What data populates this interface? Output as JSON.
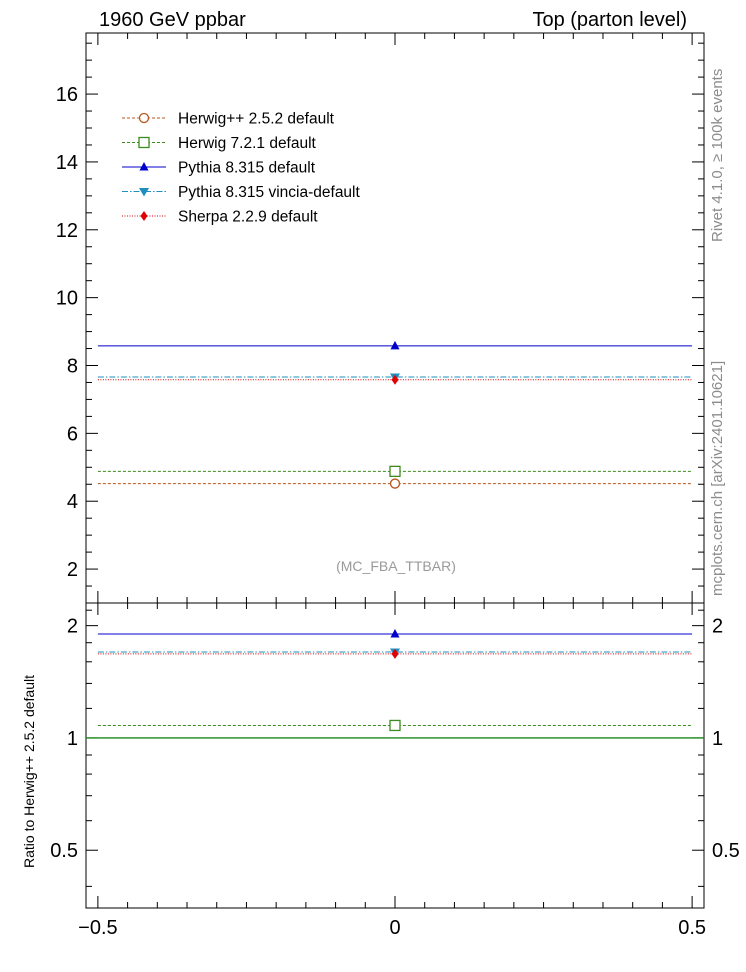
{
  "chart_data": {
    "type": "scatter",
    "header": {
      "left": "1960 GeV ppbar",
      "right": "Top (parton level)"
    },
    "side_text": {
      "rivet": "Rivet 4.1.0, ≥ 100k events",
      "mcplots": "mcplots.cern.ch [arXiv:2401.10621]"
    },
    "watermark": "(MC_FBA_TTBAR)",
    "x": [
      0
    ],
    "xlim": [
      -0.52,
      0.52
    ],
    "bin_edges": [
      -0.5,
      0.5
    ],
    "x_ticks": [
      -0.5,
      0,
      0.5
    ],
    "x_tick_labels": [
      "−0.5",
      "0",
      "0.5"
    ],
    "main": {
      "ylim": [
        1.0,
        17.8
      ],
      "y_ticks": [
        2,
        4,
        6,
        8,
        10,
        12,
        14,
        16
      ],
      "y_tick_labels": [
        "2",
        "4",
        "6",
        "8",
        "10",
        "12",
        "14",
        "16"
      ]
    },
    "ratio": {
      "ylabel": "Ratio to Herwig++ 2.5.2 default",
      "ylim": [
        0.35,
        2.3
      ],
      "scale": "log",
      "y_ticks": [
        0.5,
        1,
        2
      ],
      "y_tick_labels": [
        "0.5",
        "1",
        "2"
      ],
      "reference": 1.0
    },
    "series": [
      {
        "name": "Herwig++ 2.5.2 default",
        "color": "#b8561c",
        "marker": "open-circle",
        "dash": "3,2",
        "values": [
          4.52
        ],
        "ratio": [
          1.0
        ]
      },
      {
        "name": "Herwig 7.2.1 default",
        "color": "#3d8a1e",
        "marker": "open-square",
        "dash": "3,2",
        "values": [
          4.88
        ],
        "ratio": [
          1.08
        ]
      },
      {
        "name": "Pythia 8.315 default",
        "color": "#0000cc",
        "marker": "triangle-up",
        "dash": "",
        "values": [
          8.58
        ],
        "ratio": [
          1.9
        ]
      },
      {
        "name": "Pythia 8.315 vincia-default",
        "color": "#1f8fbf",
        "marker": "triangle-down",
        "dash": "6,2,1.5,2",
        "values": [
          7.66
        ],
        "ratio": [
          1.7
        ]
      },
      {
        "name": "Sherpa 2.2.9 default",
        "color": "#e00000",
        "marker": "diamond",
        "dash": "1,1.5",
        "values": [
          7.58
        ],
        "ratio": [
          1.68
        ]
      }
    ]
  }
}
